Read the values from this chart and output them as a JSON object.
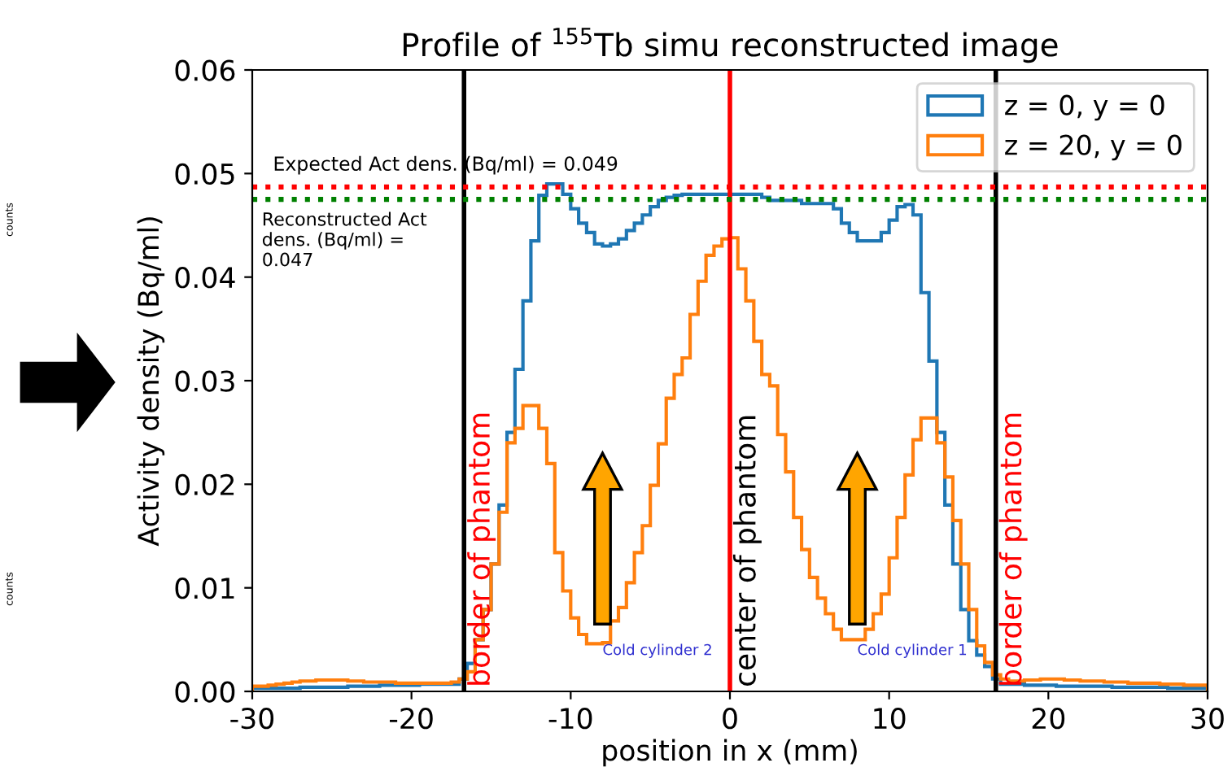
{
  "chart_data": {
    "type": "histogram",
    "title": "Profile of $^{155}$Tb simu reconstructed image",
    "xlabel": "position in x (mm)",
    "ylabel": "Activity density (Bq/ml)",
    "bins": [
      -30,
      -29.5,
      -29,
      -28.5,
      -28,
      -27.5,
      -27,
      -26.5,
      -26,
      -25.5,
      -25,
      -24.5,
      -24,
      -23.5,
      -23,
      -22.5,
      -22,
      -21.5,
      -21,
      -20.5,
      -20,
      -19.5,
      -19,
      -18.5,
      -18,
      -17.5,
      -17,
      -16.5,
      -16,
      -15.5,
      -15,
      -14.5,
      -14,
      -13.5,
      -13,
      -12.5,
      -12,
      -11.5,
      -11,
      -10.5,
      -10,
      -9.5,
      -9,
      -8.5,
      -8,
      -7.5,
      -7,
      -6.5,
      -6,
      -5.5,
      -5,
      -4.5,
      -4,
      -3.5,
      -3,
      -2.5,
      -2,
      -1.5,
      -1,
      -0.5,
      0,
      0.5,
      1,
      1.5,
      2,
      2.5,
      3,
      3.5,
      4,
      4.5,
      5,
      5.5,
      6,
      6.5,
      7,
      7.5,
      8,
      8.5,
      9,
      9.5,
      10,
      10.5,
      11,
      11.5,
      12,
      12.5,
      13,
      13.5,
      14,
      14.5,
      15,
      15.5,
      16,
      16.5,
      17,
      17.5,
      18,
      18.5,
      19,
      19.5,
      20,
      20.5,
      21,
      21.5,
      22,
      22.5,
      23,
      23.5,
      24,
      24.5,
      25,
      25.5,
      26,
      26.5,
      27,
      27.5,
      28,
      28.5,
      29,
      29.5,
      30
    ],
    "series": [
      {
        "name": "z = 0, y = 0",
        "color": "#1f77b4",
        "values": [
          0.0003,
          0.0003,
          0.0003,
          0.0003,
          0.0003,
          0.0003,
          0.0004,
          0.0004,
          0.0004,
          0.0004,
          0.0004,
          0.0004,
          0.0005,
          0.0005,
          0.0005,
          0.0005,
          0.0006,
          0.0006,
          0.0006,
          0.0006,
          0.0006,
          0.0007,
          0.0007,
          0.0007,
          0.0007,
          0.0007,
          0.0012,
          0.0027,
          0.005,
          0.0079,
          0.0123,
          0.018,
          0.025,
          0.0311,
          0.0377,
          0.0435,
          0.0479,
          0.049,
          0.049,
          0.048,
          0.0466,
          0.0452,
          0.0443,
          0.0432,
          0.043,
          0.0432,
          0.0437,
          0.0445,
          0.0452,
          0.046,
          0.0468,
          0.0474,
          0.0477,
          0.0479,
          0.048,
          0.048,
          0.048,
          0.048,
          0.048,
          0.048,
          0.048,
          0.048,
          0.048,
          0.048,
          0.0477,
          0.0474,
          0.0474,
          0.0474,
          0.0474,
          0.0471,
          0.0471,
          0.0471,
          0.0471,
          0.0466,
          0.0452,
          0.0443,
          0.0435,
          0.0435,
          0.0435,
          0.0443,
          0.0455,
          0.0468,
          0.047,
          0.046,
          0.0385,
          0.0319,
          0.025,
          0.018,
          0.0123,
          0.0079,
          0.0049,
          0.0035,
          0.0024,
          0.0012,
          0.0007,
          0.0007,
          0.0007,
          0.0006,
          0.0006,
          0.0006,
          0.0006,
          0.0005,
          0.0005,
          0.0005,
          0.0005,
          0.0005,
          0.0005,
          0.0005,
          0.0004,
          0.0004,
          0.0004,
          0.0004,
          0.0004,
          0.0004,
          0.0004,
          0.0003,
          0.0003,
          0.0003,
          0.0003,
          0.0003
        ]
      },
      {
        "name": "z = 20, y = 0",
        "color": "#ff7f0e",
        "values": [
          0.0005,
          0.0005,
          0.0006,
          0.0007,
          0.0008,
          0.0009,
          0.001,
          0.001,
          0.0011,
          0.0011,
          0.0011,
          0.0011,
          0.001,
          0.001,
          0.0009,
          0.0009,
          0.0009,
          0.0009,
          0.0008,
          0.0008,
          0.0008,
          0.0008,
          0.0008,
          0.0008,
          0.0008,
          0.0009,
          0.0012,
          0.0019,
          0.005,
          0.0079,
          0.0123,
          0.0173,
          0.024,
          0.0254,
          0.0276,
          0.0276,
          0.0254,
          0.022,
          0.0134,
          0.0097,
          0.0071,
          0.0055,
          0.0046,
          0.0046,
          0.0047,
          0.0068,
          0.0081,
          0.0105,
          0.0134,
          0.016,
          0.0199,
          0.0239,
          0.0283,
          0.0306,
          0.0322,
          0.0364,
          0.0396,
          0.0421,
          0.043,
          0.0437,
          0.0438,
          0.0408,
          0.0377,
          0.0338,
          0.0306,
          0.0295,
          0.0248,
          0.0212,
          0.0168,
          0.0137,
          0.011,
          0.009,
          0.0075,
          0.006,
          0.005,
          0.005,
          0.005,
          0.006,
          0.0075,
          0.0094,
          0.0129,
          0.0168,
          0.0209,
          0.0243,
          0.0264,
          0.0264,
          0.024,
          0.0207,
          0.0165,
          0.0123,
          0.0079,
          0.0044,
          0.0028,
          0.0016,
          0.0012,
          0.001,
          0.001,
          0.0011,
          0.0011,
          0.0012,
          0.0012,
          0.0012,
          0.0011,
          0.0011,
          0.001,
          0.001,
          0.001,
          0.0009,
          0.0009,
          0.0009,
          0.0008,
          0.0008,
          0.0008,
          0.0008,
          0.0007,
          0.0007,
          0.0007,
          0.0006,
          0.0006,
          0.0006
        ]
      }
    ],
    "xlim": [
      -30,
      30
    ],
    "xticks": [
      -30,
      -20,
      -10,
      0,
      10,
      20,
      30
    ],
    "ylim": [
      0,
      0.06
    ],
    "yticks": [
      "0.00",
      "0.01",
      "0.02",
      "0.03",
      "0.04",
      "0.05",
      "0.06"
    ],
    "ref_lines": [
      {
        "axis": "x",
        "value": -16.7,
        "label": "border of phantom",
        "color": "#000000"
      },
      {
        "axis": "x",
        "value": 0,
        "label": "center of phantom",
        "color": "#ff0000"
      },
      {
        "axis": "x",
        "value": 16.7,
        "label": "border of phantom",
        "color": "#000000"
      },
      {
        "axis": "y",
        "value": 0.0487,
        "label": "Expected Act dens. (Bq/ml) = 0.049",
        "color": "#ff0000",
        "line_style": "dotted"
      },
      {
        "axis": "y",
        "value": 0.0475,
        "label": "Reconstructed Act dens. (Bq/ml) = 0.047",
        "color": "#008000",
        "line_style": "dotted"
      }
    ],
    "annotations": [
      {
        "text": "Cold cylinder 2",
        "x": -8,
        "y": 0.0046
      },
      {
        "text": "Cold cylinder 1",
        "x": 8,
        "y": 0.0046
      },
      "counts",
      "counts"
    ],
    "legend": "top right",
    "grid": false
  }
}
